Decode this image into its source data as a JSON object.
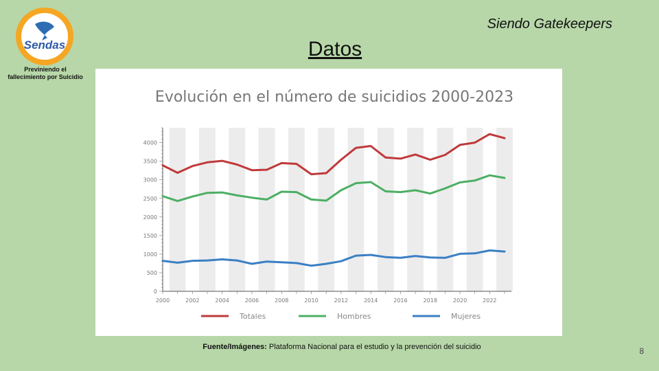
{
  "slide": {
    "header": "Siendo Gatekeepers",
    "title": "Datos",
    "logo_text": "Sendas",
    "logo_caption_line1": "Previniendo el",
    "logo_caption_line2": "fallecimiento por Suicidio",
    "footer_label": "Fuente/Imágenes:",
    "footer_text": "Plataforma Nacional para el estudio y la prevención del suicidio",
    "page_number": "8"
  },
  "colors": {
    "background": "#b7d7a8",
    "logo_ring": "#f5a623",
    "totales": "#c0393b",
    "hombres": "#4caf63",
    "mujeres": "#3a7fc4",
    "stripe": "#ececec"
  },
  "chart_data": {
    "type": "line",
    "title": "Evolución en el número de suicidios 2000-2023",
    "xlabel": "",
    "ylabel": "",
    "x": [
      2000,
      2001,
      2002,
      2003,
      2004,
      2005,
      2006,
      2007,
      2008,
      2009,
      2010,
      2011,
      2012,
      2013,
      2014,
      2015,
      2016,
      2017,
      2018,
      2019,
      2020,
      2021,
      2022,
      2023
    ],
    "x_ticks": [
      "2000",
      "2002",
      "2004",
      "2006",
      "2008",
      "2010",
      "2012",
      "2014",
      "2016",
      "2018",
      "2020",
      "2022"
    ],
    "y_ticks": [
      "0",
      "500",
      "1000",
      "1500",
      "2000",
      "2500",
      "3000",
      "3500",
      "4000"
    ],
    "ylim": [
      0,
      4400
    ],
    "grid": false,
    "legend_position": "bottom",
    "series": [
      {
        "name": "Totales",
        "color_key": "totales",
        "values": [
          3390,
          3190,
          3370,
          3470,
          3510,
          3410,
          3260,
          3270,
          3450,
          3430,
          3150,
          3180,
          3540,
          3860,
          3910,
          3600,
          3570,
          3680,
          3540,
          3670,
          3940,
          4000,
          4230,
          4120
        ]
      },
      {
        "name": "Hombres",
        "color_key": "hombres",
        "values": [
          2560,
          2430,
          2550,
          2650,
          2660,
          2580,
          2520,
          2470,
          2680,
          2670,
          2470,
          2440,
          2720,
          2910,
          2940,
          2690,
          2670,
          2720,
          2630,
          2770,
          2930,
          2980,
          3120,
          3050
        ]
      },
      {
        "name": "Mujeres",
        "color_key": "mujeres",
        "values": [
          820,
          770,
          820,
          830,
          860,
          830,
          740,
          800,
          780,
          760,
          690,
          740,
          810,
          960,
          980,
          920,
          900,
          950,
          910,
          900,
          1010,
          1020,
          1100,
          1070
        ]
      }
    ]
  }
}
